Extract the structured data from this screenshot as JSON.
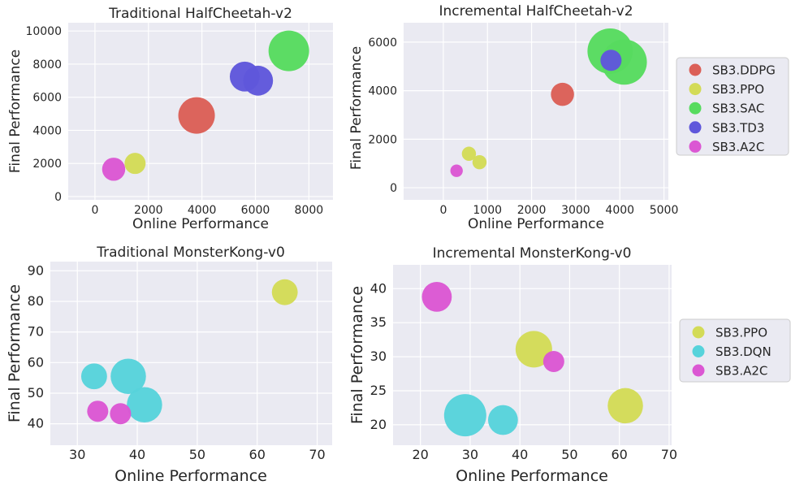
{
  "colors": {
    "SB3.DDPG": "#db5f57",
    "SB3.PPO": "#d3db57",
    "SB3.SAC": "#57db5f",
    "SB3.TD3": "#5f57db",
    "SB3.A2C": "#db57d3",
    "SB3.DQN": "#57d3db",
    "panel_bg": "#eaeaf2",
    "grid": "#ffffff"
  },
  "legends": [
    {
      "placement": "right",
      "entries": [
        "SB3.DDPG",
        "SB3.PPO",
        "SB3.SAC",
        "SB3.TD3",
        "SB3.A2C"
      ]
    },
    {
      "placement": "right",
      "entries": [
        "SB3.PPO",
        "SB3.DQN",
        "SB3.A2C"
      ]
    }
  ],
  "chart_data": [
    {
      "type": "scatter",
      "title": "Traditional HalfCheetah-v2",
      "xlabel": "Online Performance",
      "ylabel": "Final Performance",
      "xlim": [
        -1000,
        8900
      ],
      "ylim": [
        -200,
        10500
      ],
      "xticks": [
        0,
        2000,
        4000,
        6000,
        8000
      ],
      "yticks": [
        0,
        2000,
        4000,
        6000,
        8000,
        10000
      ],
      "series": [
        {
          "name": "SB3.DDPG",
          "points": [
            {
              "x": 3800,
              "y": 4900,
              "size": 3.0
            }
          ]
        },
        {
          "name": "SB3.PPO",
          "points": [
            {
              "x": 1500,
              "y": 2000,
              "size": 1.0
            }
          ]
        },
        {
          "name": "SB3.SAC",
          "points": [
            {
              "x": 7250,
              "y": 8800,
              "size": 3.7
            }
          ]
        },
        {
          "name": "SB3.TD3",
          "points": [
            {
              "x": 5600,
              "y": 7250,
              "size": 2.0
            },
            {
              "x": 6100,
              "y": 7000,
              "size": 2.0
            }
          ]
        },
        {
          "name": "SB3.A2C",
          "points": [
            {
              "x": 700,
              "y": 1650,
              "size": 1.2
            }
          ]
        }
      ]
    },
    {
      "type": "scatter",
      "title": "Incremental HalfCheetah-v2",
      "xlabel": "Online Performance",
      "ylabel": "Final Performance",
      "xlim": [
        -900,
        5100
      ],
      "ylim": [
        -500,
        6800
      ],
      "xticks": [
        0,
        1000,
        2000,
        3000,
        4000,
        5000
      ],
      "yticks": [
        0,
        2000,
        4000,
        6000
      ],
      "series": [
        {
          "name": "SB3.DDPG",
          "points": [
            {
              "x": 2700,
              "y": 3850,
              "size": 1.2
            }
          ]
        },
        {
          "name": "SB3.PPO",
          "points": [
            {
              "x": 580,
              "y": 1400,
              "size": 0.45
            },
            {
              "x": 820,
              "y": 1050,
              "size": 0.45
            }
          ]
        },
        {
          "name": "SB3.SAC",
          "points": [
            {
              "x": 3780,
              "y": 5630,
              "size": 4.6
            },
            {
              "x": 4100,
              "y": 5180,
              "size": 4.6
            }
          ]
        },
        {
          "name": "SB3.TD3",
          "points": [
            {
              "x": 3800,
              "y": 5250,
              "size": 1.0
            }
          ]
        },
        {
          "name": "SB3.A2C",
          "points": [
            {
              "x": 300,
              "y": 700,
              "size": 0.35
            }
          ]
        }
      ]
    },
    {
      "type": "scatter",
      "title": "Traditional MonsterKong-v0",
      "xlabel": "Online Performance",
      "ylabel": "Final Performance",
      "xlim": [
        25.5,
        72.5
      ],
      "ylim": [
        33,
        93
      ],
      "xticks": [
        30,
        40,
        50,
        60,
        70
      ],
      "yticks": [
        40,
        50,
        60,
        70,
        80,
        90
      ],
      "series": [
        {
          "name": "SB3.PPO",
          "points": [
            {
              "x": 64.6,
              "y": 83,
              "size": 1.5
            }
          ]
        },
        {
          "name": "SB3.DQN",
          "points": [
            {
              "x": 32.8,
              "y": 55.5,
              "size": 1.5
            },
            {
              "x": 38.5,
              "y": 55.5,
              "size": 2.8
            },
            {
              "x": 41.2,
              "y": 46.2,
              "size": 2.8
            }
          ]
        },
        {
          "name": "SB3.A2C",
          "points": [
            {
              "x": 33.4,
              "y": 44.1,
              "size": 1.0
            },
            {
              "x": 37.2,
              "y": 43.3,
              "size": 1.0
            }
          ]
        }
      ]
    },
    {
      "type": "scatter",
      "title": "Incremental MonsterKong-v0",
      "xlabel": "Online Performance",
      "ylabel": "Final Performance",
      "xlim": [
        14.5,
        70.5
      ],
      "ylim": [
        17,
        43.5
      ],
      "xticks": [
        20,
        30,
        40,
        50,
        60,
        70
      ],
      "yticks": [
        20,
        25,
        30,
        35,
        40
      ],
      "series": [
        {
          "name": "SB3.PPO",
          "points": [
            {
              "x": 42.8,
              "y": 31.1,
              "size": 3.0
            },
            {
              "x": 61.2,
              "y": 22.8,
              "size": 2.8
            }
          ]
        },
        {
          "name": "SB3.DQN",
          "points": [
            {
              "x": 29.0,
              "y": 21.4,
              "size": 4.0
            },
            {
              "x": 36.6,
              "y": 20.7,
              "size": 2.0
            }
          ]
        },
        {
          "name": "SB3.A2C",
          "points": [
            {
              "x": 23.3,
              "y": 38.8,
              "size": 2.0
            },
            {
              "x": 46.8,
              "y": 29.3,
              "size": 1.0
            }
          ]
        }
      ]
    }
  ]
}
